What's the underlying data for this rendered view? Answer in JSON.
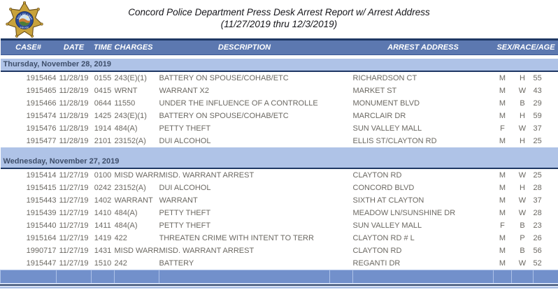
{
  "colors": {
    "navy_rule": "#1f3864",
    "header_bar": "#5c78b0",
    "section_band": "#afc3e7",
    "footer_bar": "#7290cb",
    "body_text": "#6b6862"
  },
  "logo": {
    "top_text": "CITY OF CONCORD",
    "bottom_text": "POLICE"
  },
  "header": {
    "title_line1": "Concord Police Department Press Desk Arrest Report w/ Arrest Address",
    "title_line2": "(11/27/2019 thru 12/3/2019)"
  },
  "table": {
    "columns": [
      "CASE#",
      "DATE",
      "TIME",
      "CHARGES",
      "DESCRIPTION",
      "ARREST ADDRESS",
      "SEX/RACE/AGE"
    ],
    "sections": [
      {
        "label": "Thursday, November 28, 2019",
        "rows": [
          {
            "case": "1915464",
            "date": "11/28/19",
            "time": "0155",
            "charges": "243(E)(1)",
            "description": "BATTERY ON SPOUSE/COHAB/ETC",
            "address": "RICHARDSON CT",
            "sex": "M",
            "race": "H",
            "age": "55"
          },
          {
            "case": "1915465",
            "date": "11/28/19",
            "time": "0415",
            "charges": "WRNT",
            "description": "WARRANT X2",
            "address": "MARKET ST",
            "sex": "M",
            "race": "W",
            "age": "43"
          },
          {
            "case": "1915466",
            "date": "11/28/19",
            "time": "0644",
            "charges": "11550",
            "description": "UNDER THE INFLUENCE OF A CONTROLLE",
            "address": "MONUMENT BLVD",
            "sex": "M",
            "race": "B",
            "age": "29"
          },
          {
            "case": "1915474",
            "date": "11/28/19",
            "time": "1425",
            "charges": "243(E)(1)",
            "description": "BATTERY ON SPOUSE/COHAB/ETC",
            "address": "MARCLAIR DR",
            "sex": "M",
            "race": "H",
            "age": "59"
          },
          {
            "case": "1915476",
            "date": "11/28/19",
            "time": "1914",
            "charges": "484(A)",
            "description": "PETTY THEFT",
            "address": "SUN VALLEY MALL",
            "sex": "F",
            "race": "W",
            "age": "37"
          },
          {
            "case": "1915477",
            "date": "11/28/19",
            "time": "2101",
            "charges": "23152(A)",
            "description": "DUI ALCOHOL",
            "address": "ELLIS ST/CLAYTON RD",
            "sex": "M",
            "race": "H",
            "age": "25"
          }
        ]
      },
      {
        "label": "Wednesday, November 27, 2019",
        "rows": [
          {
            "case": "1915414",
            "date": "11/27/19",
            "time": "0100",
            "charges": "MISD WARRA",
            "description": "MISD. WARRANT ARREST",
            "address": "CLAYTON RD",
            "sex": "M",
            "race": "W",
            "age": "25"
          },
          {
            "case": "1915415",
            "date": "11/27/19",
            "time": "0242",
            "charges": "23152(A)",
            "description": "DUI ALCOHOL",
            "address": "CONCORD BLVD",
            "sex": "M",
            "race": "H",
            "age": "28"
          },
          {
            "case": "1915443",
            "date": "11/27/19",
            "time": "1402",
            "charges": "WARRANT",
            "description": "WARRANT",
            "address": "SIXTH AT CLAYTON",
            "sex": "M",
            "race": "W",
            "age": "37"
          },
          {
            "case": "1915439",
            "date": "11/27/19",
            "time": "1410",
            "charges": "484(A)",
            "description": "PETTY THEFT",
            "address": "MEADOW LN/SUNSHINE DR",
            "sex": "M",
            "race": "W",
            "age": "28"
          },
          {
            "case": "1915440",
            "date": "11/27/19",
            "time": "1411",
            "charges": "484(A)",
            "description": "PETTY THEFT",
            "address": "SUN VALLEY MALL",
            "sex": "F",
            "race": "B",
            "age": "23"
          },
          {
            "case": "1915164",
            "date": "11/27/19",
            "time": "1419",
            "charges": "422",
            "description": "THREATEN CRIME WITH INTENT TO TERR",
            "address": "CLAYTON RD # L",
            "sex": "M",
            "race": "P",
            "age": "26"
          },
          {
            "case": "1990717",
            "date": "11/27/19",
            "time": "1431",
            "charges": "MISD WARRA",
            "description": "MISD. WARRANT ARREST",
            "address": "CLAYTON RD",
            "sex": "M",
            "race": "B",
            "age": "56"
          },
          {
            "case": "1915447",
            "date": "11/27/19",
            "time": "1510",
            "charges": "242",
            "description": "BATTERY",
            "address": "REGANTI DR",
            "sex": "M",
            "race": "W",
            "age": "52"
          }
        ]
      }
    ]
  }
}
